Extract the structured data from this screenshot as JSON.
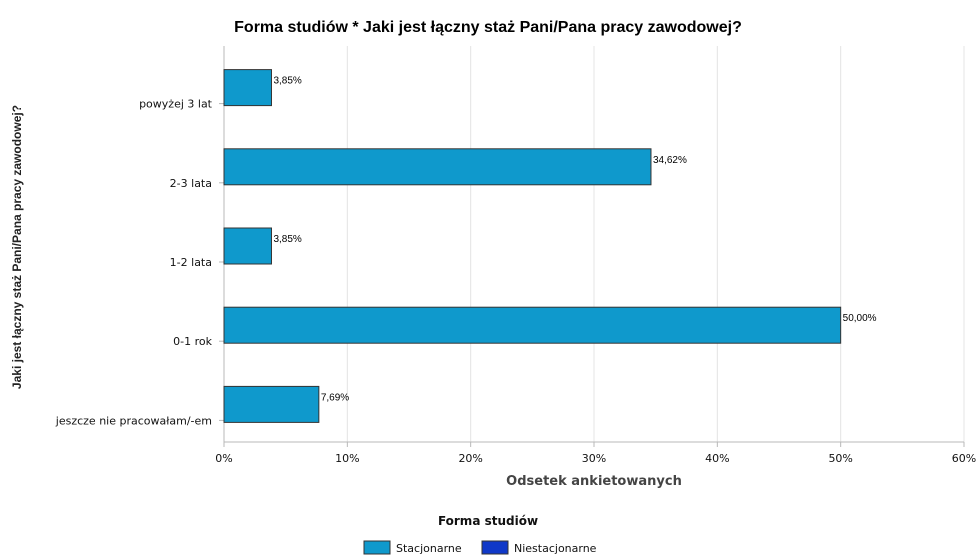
{
  "chart_data": {
    "type": "bar",
    "orientation": "horizontal",
    "title": "Forma studiów * Jaki jest łączny staż Pani/Pana pracy zawodowej?",
    "xlabel": "Odsetek ankietowanych",
    "ylabel": "Jaki jest łączny staż Pani/Pana pracy zawodowej?",
    "categories": [
      "powyżej 3 lat",
      "2-3 lata",
      "1-2 lata",
      "0-1 rok",
      "jeszcze nie pracowałam/-em"
    ],
    "xlim": [
      0,
      60
    ],
    "x_ticks": [
      "0%",
      "10%",
      "20%",
      "30%",
      "40%",
      "50%",
      "60%"
    ],
    "grid": true,
    "legend": {
      "title": "Forma studiów",
      "placement": "bottom-center"
    },
    "series": [
      {
        "name": "Stacjonarne",
        "color": "#0f99cc",
        "values": [
          3.85,
          34.62,
          3.85,
          50.0,
          7.69
        ],
        "data_labels": [
          "3,85%",
          "34,62%",
          "3,85%",
          "50,00%",
          "7,69%"
        ]
      },
      {
        "name": "Niestacjonarne",
        "color": "#1038c8",
        "values": [
          0,
          0,
          0,
          0,
          0
        ],
        "data_labels": [
          "",
          "",
          "",
          "",
          ""
        ]
      }
    ]
  }
}
